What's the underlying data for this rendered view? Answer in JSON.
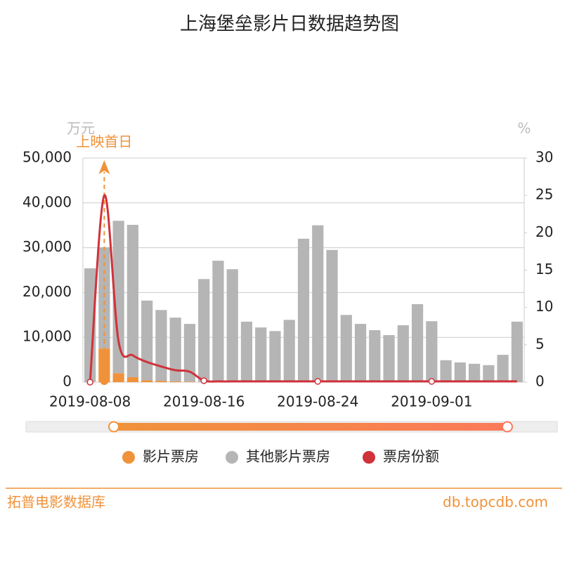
{
  "chart_data": {
    "type": "bar",
    "title": "上海堡垒影片日数据趋势图",
    "y_axis_label": "万元",
    "y2_axis_label": "%",
    "annotation": "上映首日",
    "categories": [
      "2019-08-08",
      null,
      null,
      null,
      null,
      null,
      null,
      null,
      "2019-08-16",
      null,
      null,
      null,
      null,
      null,
      null,
      null,
      "2019-08-24",
      null,
      null,
      null,
      null,
      null,
      null,
      null,
      "2019-09-01",
      null,
      null,
      null,
      null,
      null,
      null
    ],
    "series": [
      {
        "name": "影片票房",
        "type": "bar",
        "color": "#f0923a",
        "values": [
          0,
          7500,
          2000,
          1100,
          400,
          300,
          200,
          100,
          0,
          0,
          0,
          0,
          0,
          0,
          0,
          0,
          0,
          0,
          0,
          0,
          0,
          0,
          0,
          0,
          0,
          0,
          0,
          0,
          0,
          0,
          0
        ]
      },
      {
        "name": "其他影片票房",
        "type": "bar",
        "color": "#b5b5b5",
        "values": [
          25400,
          22600,
          34000,
          34000,
          17800,
          15800,
          14200,
          12900,
          23000,
          27100,
          25200,
          13500,
          12200,
          11400,
          13900,
          32000,
          35000,
          29500,
          15000,
          13000,
          11600,
          10500,
          12700,
          17400,
          13600,
          4900,
          4400,
          4100,
          3800,
          6100,
          13500
        ]
      },
      {
        "name": "票房份额",
        "type": "line",
        "axis": "y2",
        "color": "#d0323a",
        "values": [
          0,
          25,
          5.5,
          3.6,
          2.7,
          2.1,
          1.6,
          1.4,
          0.2,
          0.1,
          0.1,
          0.1,
          0.1,
          0.1,
          0.1,
          0.1,
          0.1,
          0.1,
          0.1,
          0.1,
          0.1,
          0.1,
          0.1,
          0.1,
          0.1,
          0.1,
          0.1,
          0.1,
          0.1,
          0.1,
          0.1
        ]
      }
    ],
    "ylim": [
      0,
      50000
    ],
    "yticks": [
      {
        "value": 0,
        "label": "0"
      },
      {
        "value": 10000,
        "label": "10,000"
      },
      {
        "value": 20000,
        "label": "20,000"
      },
      {
        "value": 30000,
        "label": "30,000"
      },
      {
        "value": 40000,
        "label": "40,000"
      },
      {
        "value": 50000,
        "label": "50,000"
      }
    ],
    "y2lim": [
      0,
      30
    ],
    "y2ticks": [
      0,
      5,
      10,
      15,
      20,
      25,
      30
    ],
    "grid": true,
    "footer_left": "拓普电影数据库",
    "footer_right": "db.topcdb.com"
  }
}
